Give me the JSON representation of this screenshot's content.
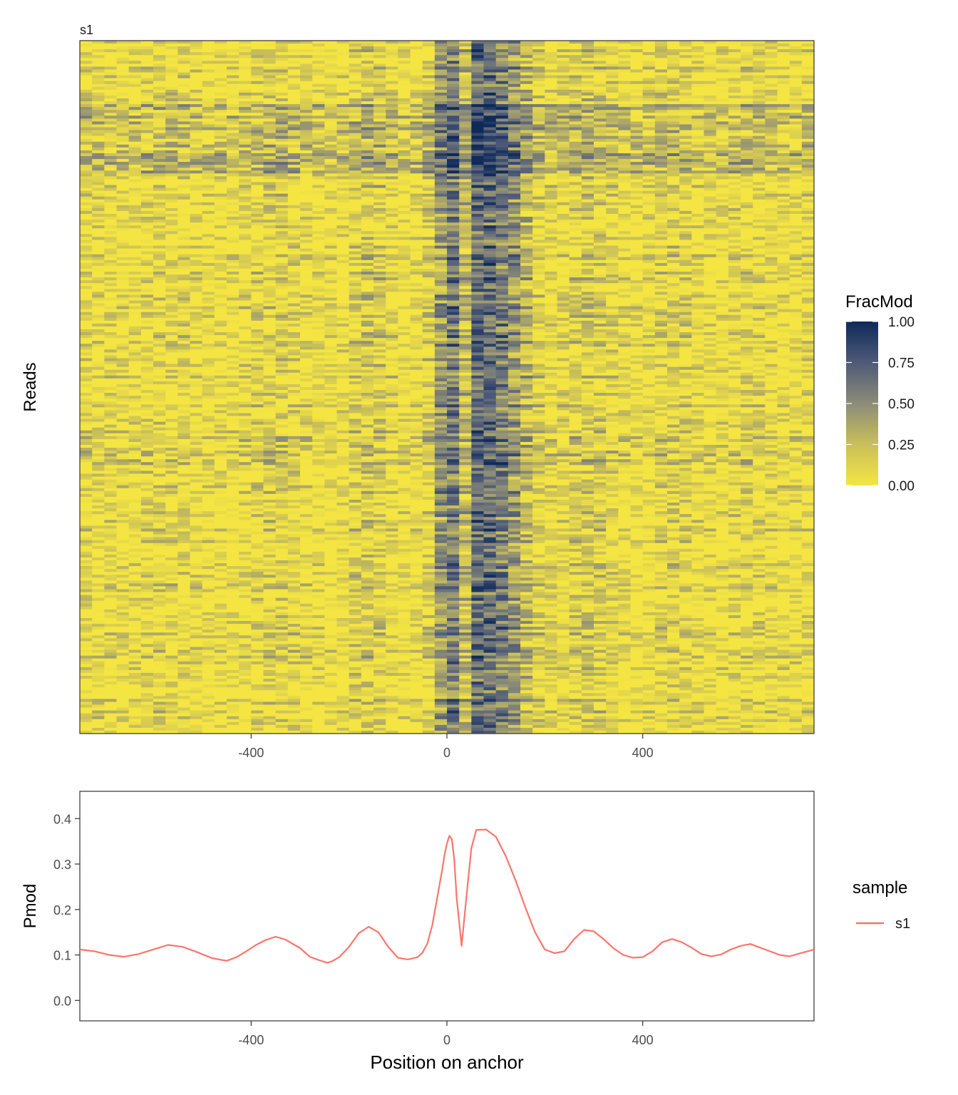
{
  "chart_data": [
    {
      "type": "heatmap",
      "title": "s1",
      "xlabel": "",
      "ylabel": "Reads",
      "xlim": [
        -750,
        750
      ],
      "x_ticks": [
        -400,
        0,
        400
      ],
      "x_tick_labels": [
        "-400",
        "0",
        "400"
      ],
      "grid": false,
      "colorbar": {
        "title": "FracMod",
        "range": [
          0,
          1
        ],
        "ticks": [
          1.0,
          0.75,
          0.5,
          0.25,
          0.0
        ],
        "tick_labels": [
          "1.00",
          "0.75",
          "0.50",
          "0.25",
          "0.00"
        ],
        "low_color": "#F4E542",
        "high_color": "#00204D"
      },
      "n_rows_drawn": 240,
      "block_boundaries_rowfrac": [
        0.26,
        0.54
      ],
      "profile_note_series": "s1"
    },
    {
      "type": "line",
      "title": "",
      "xlabel": "Position on anchor",
      "ylabel": "Pmod",
      "xlim": [
        -750,
        750
      ],
      "ylim": [
        -0.045,
        0.46
      ],
      "x_ticks": [
        -400,
        0,
        400
      ],
      "x_tick_labels": [
        "-400",
        "0",
        "400"
      ],
      "y_ticks": [
        0.0,
        0.1,
        0.2,
        0.3,
        0.4
      ],
      "y_tick_labels": [
        "0.0",
        "0.1",
        "0.2",
        "0.3",
        "0.4"
      ],
      "grid": false,
      "legend": {
        "title": "sample",
        "position": "right"
      },
      "series": [
        {
          "name": "s1",
          "color": "#F8766D",
          "x": [
            -750,
            -720,
            -690,
            -660,
            -630,
            -600,
            -570,
            -540,
            -510,
            -480,
            -450,
            -430,
            -410,
            -400,
            -390,
            -370,
            -350,
            -330,
            -300,
            -280,
            -260,
            -245,
            -235,
            -220,
            -200,
            -180,
            -160,
            -140,
            -120,
            -100,
            -80,
            -60,
            -50,
            -40,
            -30,
            -20,
            -10,
            -5,
            0,
            5,
            10,
            15,
            20,
            30,
            40,
            50,
            60,
            80,
            100,
            120,
            140,
            160,
            180,
            200,
            220,
            240,
            260,
            280,
            300,
            320,
            340,
            360,
            380,
            400,
            420,
            440,
            460,
            480,
            500,
            520,
            540,
            560,
            580,
            600,
            620,
            640,
            660,
            680,
            700,
            720,
            750
          ],
          "y": [
            0.112,
            0.108,
            0.1,
            0.096,
            0.102,
            0.112,
            0.122,
            0.118,
            0.106,
            0.093,
            0.087,
            0.095,
            0.108,
            0.115,
            0.122,
            0.133,
            0.14,
            0.134,
            0.115,
            0.096,
            0.088,
            0.083,
            0.086,
            0.095,
            0.118,
            0.148,
            0.162,
            0.15,
            0.118,
            0.094,
            0.09,
            0.095,
            0.105,
            0.125,
            0.165,
            0.225,
            0.285,
            0.32,
            0.345,
            0.362,
            0.355,
            0.31,
            0.225,
            0.12,
            0.23,
            0.335,
            0.375,
            0.376,
            0.36,
            0.318,
            0.265,
            0.205,
            0.15,
            0.112,
            0.104,
            0.108,
            0.135,
            0.155,
            0.152,
            0.135,
            0.115,
            0.1,
            0.094,
            0.095,
            0.108,
            0.128,
            0.135,
            0.128,
            0.116,
            0.102,
            0.097,
            0.101,
            0.112,
            0.12,
            0.124,
            0.116,
            0.108,
            0.1,
            0.097,
            0.103,
            0.112
          ]
        }
      ]
    }
  ]
}
